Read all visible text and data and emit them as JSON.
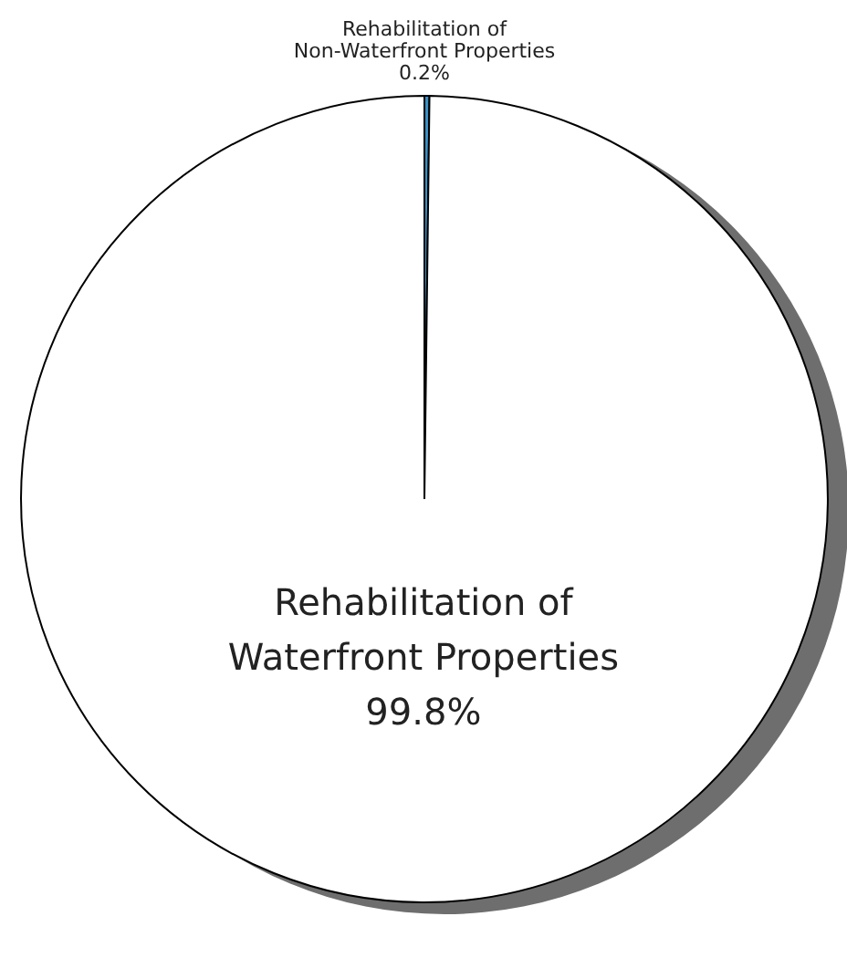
{
  "chart_data": {
    "type": "pie",
    "categories": [
      "Rehabilitation of Non-Waterfront Properties",
      "Rehabilitation of Waterfront Properties"
    ],
    "values": [
      0.2,
      99.8
    ],
    "colors": [
      "#3a8fc4",
      "#ffffff"
    ],
    "value_labels": [
      "0.2%",
      "99.8%"
    ],
    "legend": false
  }
}
